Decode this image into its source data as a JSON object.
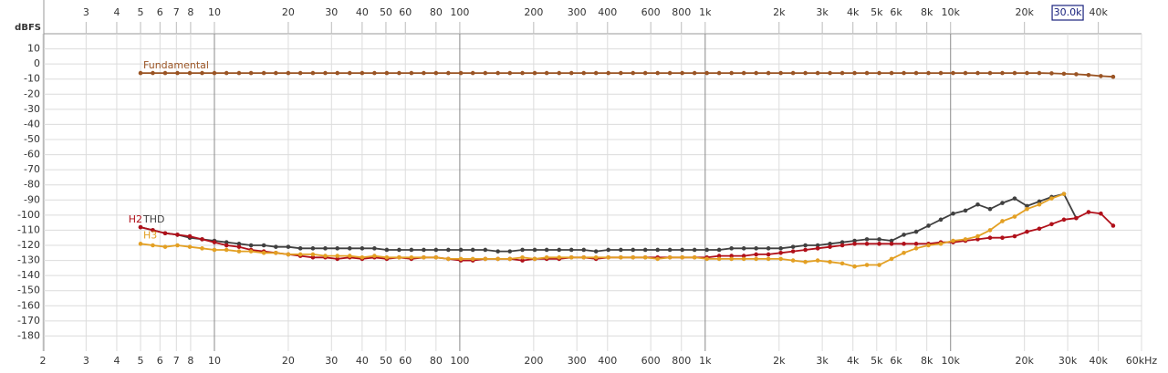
{
  "chart_data": {
    "type": "line",
    "y_label": "dBFS",
    "xscale": "log",
    "xlim": [
      2,
      60000
    ],
    "ylim": [
      -190,
      20
    ],
    "grid": true,
    "xticks": [
      2,
      3,
      4,
      5,
      6,
      7,
      8,
      10,
      20,
      30,
      40,
      50,
      60,
      80,
      100,
      200,
      300,
      400,
      600,
      800,
      {
        "value": 1000,
        "label": "1k"
      },
      {
        "value": 2000,
        "label": "2k"
      },
      {
        "value": 3000,
        "label": "3k"
      },
      {
        "value": 4000,
        "label": "4k"
      },
      {
        "value": 5000,
        "label": "5k"
      },
      {
        "value": 6000,
        "label": "6k"
      },
      {
        "value": 8000,
        "label": "8k"
      },
      {
        "value": 10000,
        "label": "10k"
      },
      {
        "value": 20000,
        "label": "20k"
      },
      {
        "value": 30000,
        "label": "30k"
      },
      {
        "value": 40000,
        "label": "40k"
      },
      {
        "value": 60000,
        "label": "60kHz"
      }
    ],
    "xticks_top": [
      3,
      4,
      5,
      6,
      7,
      8,
      10,
      20,
      30,
      40,
      50,
      60,
      80,
      100,
      200,
      300,
      400,
      600,
      800,
      {
        "value": 1000,
        "label": "1k"
      },
      {
        "value": 2000,
        "label": "2k"
      },
      {
        "value": 3000,
        "label": "3k"
      },
      {
        "value": 4000,
        "label": "4k"
      },
      {
        "value": 5000,
        "label": "5k"
      },
      {
        "value": 6000,
        "label": "6k"
      },
      {
        "value": 8000,
        "label": "8k"
      },
      {
        "value": 10000,
        "label": "10k"
      },
      {
        "value": 20000,
        "label": "20k"
      },
      {
        "value": 40000,
        "label": "40k"
      }
    ],
    "cursor": {
      "value": 30000,
      "label": "30.0k"
    },
    "yticks": [
      10,
      0,
      -10,
      -20,
      -30,
      -40,
      -50,
      -60,
      -70,
      -80,
      -90,
      -100,
      -110,
      -120,
      -130,
      -140,
      -150,
      -160,
      -170,
      -180
    ],
    "x": [
      5.0,
      5.61,
      6.3,
      7.07,
      7.94,
      8.91,
      10.0,
      11.2,
      12.6,
      14.1,
      15.9,
      17.8,
      20.0,
      22.4,
      25.2,
      28.3,
      31.7,
      35.6,
      40.0,
      44.9,
      50.4,
      56.6,
      63.5,
      71.3,
      80.0,
      89.8,
      101,
      113,
      127,
      143,
      160,
      180,
      202,
      226,
      254,
      285,
      320,
      359,
      403,
      453,
      508,
      570,
      640,
      718,
      806,
      905,
      1016,
      1140,
      1280,
      1437,
      1613,
      1810,
      2032,
      2281,
      2560,
      2874,
      3225,
      3620,
      4064,
      4561,
      5120,
      5747,
      6451,
      7241,
      8127,
      9123,
      10240,
      11494,
      12902,
      14482,
      16255,
      18246,
      20480,
      22988,
      25803,
      28963,
      32510,
      36491,
      40960,
      45976
    ],
    "series": [
      {
        "name": "Fundamental",
        "color": "#9a5424",
        "values": [
          -6,
          -6,
          -6,
          -6,
          -6,
          -6,
          -6,
          -6,
          -6,
          -6,
          -6,
          -6,
          -6,
          -6,
          -6,
          -6,
          -6,
          -6,
          -6,
          -6,
          -6,
          -6,
          -6,
          -6,
          -6,
          -6,
          -6,
          -6,
          -6,
          -6,
          -6,
          -6,
          -6,
          -6,
          -6,
          -6,
          -6,
          -6,
          -6,
          -6,
          -6,
          -6,
          -6,
          -6,
          -6,
          -6,
          -6,
          -6,
          -6,
          -6,
          -6,
          -6,
          -6,
          -6,
          -6,
          -6,
          -6,
          -6,
          -6,
          -6,
          -6,
          -6,
          -6,
          -6,
          -6,
          -6,
          -6,
          -6,
          -6,
          -6,
          -6,
          -6,
          -6,
          -6,
          -6.2,
          -6.5,
          -6.8,
          -7.3,
          -8,
          -8.5
        ]
      },
      {
        "name": "THD",
        "color": "#404040",
        "values": [
          -108,
          -110,
          -112,
          -113,
          -115,
          -116,
          -117,
          -118,
          -119,
          -120,
          -120,
          -121,
          -121,
          -122,
          -122,
          -122,
          -122,
          -122,
          -122,
          -122,
          -123,
          -123,
          -123,
          -123,
          -123,
          -123,
          -123,
          -123,
          -123,
          -124,
          -124,
          -123,
          -123,
          -123,
          -123,
          -123,
          -123,
          -124,
          -123,
          -123,
          -123,
          -123,
          -123,
          -123,
          -123,
          -123,
          -123,
          -123,
          -122,
          -122,
          -122,
          -122,
          -122,
          -121,
          -120,
          -120,
          -119,
          -118,
          -117,
          -116,
          -116,
          -117,
          -113,
          -111,
          -107,
          -103,
          -99,
          -97,
          -93,
          -96,
          -92,
          -89,
          -94,
          -91,
          -88,
          -86,
          -102,
          null,
          null,
          null
        ]
      },
      {
        "name": "H2",
        "color": "#b0101a",
        "values": [
          -108,
          -110,
          -112,
          -113,
          -114,
          -116,
          -118,
          -120,
          -121,
          -123,
          -124,
          -125,
          -126,
          -127,
          -128,
          -128,
          -129,
          -128,
          -129,
          -128,
          -129,
          -128,
          -129,
          -128,
          -128,
          -129,
          -130,
          -130,
          -129,
          -129,
          -129,
          -130,
          -129,
          -129,
          -129,
          -128,
          -128,
          -129,
          -128,
          -128,
          -128,
          -128,
          -128,
          -128,
          -128,
          -128,
          -128,
          -127,
          -127,
          -127,
          -126,
          -126,
          -125,
          -124,
          -123,
          -122,
          -121,
          -120,
          -119,
          -119,
          -119,
          -119,
          -119,
          -119,
          -119,
          -118,
          -118,
          -117,
          -116,
          -115,
          -115,
          -114,
          -111,
          -109,
          -106,
          -103,
          -102,
          -98,
          -99,
          -107
        ]
      },
      {
        "name": "H3",
        "color": "#e3a024",
        "values": [
          -119,
          -120,
          -121,
          -120,
          -121,
          -122,
          -123,
          -123,
          -124,
          -124,
          -125,
          -125,
          -126,
          -126,
          -126,
          -127,
          -127,
          -127,
          -128,
          -127,
          -128,
          -128,
          -128,
          -128,
          -128,
          -129,
          -129,
          -129,
          -129,
          -129,
          -129,
          -128,
          -129,
          -128,
          -128,
          -128,
          -128,
          -128,
          -128,
          -128,
          -128,
          -128,
          -129,
          -128,
          -128,
          -128,
          -129,
          -129,
          -129,
          -129,
          -129,
          -129,
          -129,
          -130,
          -131,
          -130,
          -131,
          -132,
          -134,
          -133,
          -133,
          -129,
          -125,
          -122,
          -120,
          -119,
          -117,
          -116,
          -114,
          -110,
          -104,
          -101,
          -96,
          -93,
          -89,
          -86,
          null,
          null,
          null,
          null
        ]
      }
    ]
  }
}
